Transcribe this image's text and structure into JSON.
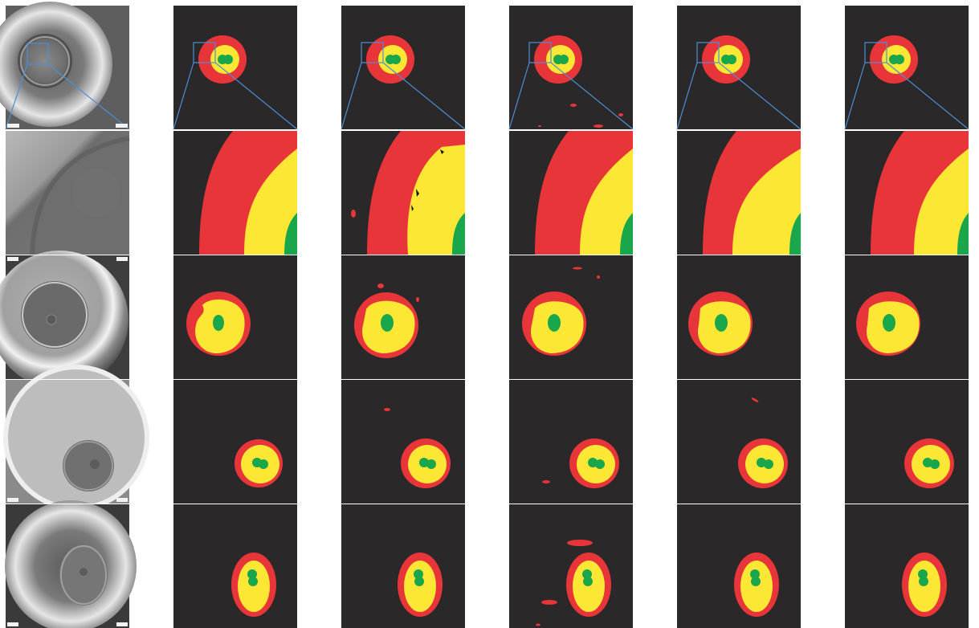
{
  "figure": {
    "columns": [
      {
        "kind": "microscopy"
      },
      {
        "kind": "segmentation"
      },
      {
        "kind": "segmentation"
      },
      {
        "kind": "segmentation"
      },
      {
        "kind": "segmentation"
      },
      {
        "kind": "segmentation"
      }
    ],
    "rows": [
      {
        "kind": "full-view",
        "has_zoom_box": true
      },
      {
        "kind": "zoomed-detail"
      },
      {
        "kind": "full-view"
      },
      {
        "kind": "full-view"
      },
      {
        "kind": "full-view"
      }
    ],
    "class_colors": {
      "background": "#2b2829",
      "outer_ring": "#e8353a",
      "cytoplasm": "#fbe734",
      "nucleus": "#1aa64b",
      "zoom_box": "#4a8fd6"
    }
  }
}
